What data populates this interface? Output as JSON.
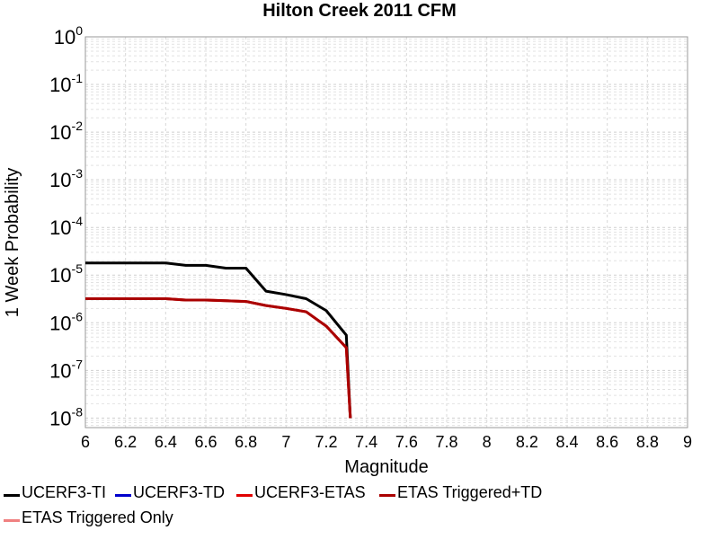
{
  "chart_data": {
    "type": "line",
    "title": "Hilton Creek 2011 CFM",
    "xlabel": "Magnitude",
    "ylabel": "1 Week Probability",
    "xlim": [
      6,
      9
    ],
    "ylim_log10": [
      -8.2,
      0
    ],
    "yscale": "log",
    "grid": true,
    "legend_position": "bottom",
    "x_ticks": [
      "6",
      "6.2",
      "6.4",
      "6.6",
      "6.8",
      "7",
      "7.2",
      "7.4",
      "7.6",
      "7.8",
      "8",
      "8.2",
      "8.4",
      "8.6",
      "8.8",
      "9"
    ],
    "y_tick_exponents": [
      "0",
      "-1",
      "-2",
      "-3",
      "-4",
      "-5",
      "-6",
      "-7",
      "-8"
    ],
    "series": [
      {
        "name": "UCERF3-TI",
        "color": "#000000",
        "x": [
          6.0,
          6.1,
          6.2,
          6.3,
          6.4,
          6.5,
          6.6,
          6.7,
          6.8,
          6.9,
          7.0,
          7.1,
          7.2,
          7.3,
          7.32
        ],
        "y": [
          1.8e-05,
          1.8e-05,
          1.8e-05,
          1.8e-05,
          1.8e-05,
          1.6e-05,
          1.6e-05,
          1.4e-05,
          1.4e-05,
          4.6e-06,
          3.9e-06,
          3.2e-06,
          1.8e-06,
          5.5e-07,
          1e-08
        ]
      },
      {
        "name": "UCERF3-TD",
        "color": "#0000cc",
        "x": [],
        "y": []
      },
      {
        "name": "UCERF3-ETAS",
        "color": "#e00000",
        "x": [
          6.0,
          6.1,
          6.2,
          6.3,
          6.4,
          6.5,
          6.6,
          6.7,
          6.8,
          6.9,
          7.0,
          7.1,
          7.2,
          7.3,
          7.32
        ],
        "y": [
          3.2e-06,
          3.2e-06,
          3.2e-06,
          3.2e-06,
          3.2e-06,
          3e-06,
          3e-06,
          2.9e-06,
          2.8e-06,
          2.3e-06,
          2e-06,
          1.7e-06,
          8.5e-07,
          3e-07,
          1e-08
        ]
      },
      {
        "name": "ETAS Triggered+TD",
        "color": "#aa0000",
        "x": [
          6.0,
          6.1,
          6.2,
          6.3,
          6.4,
          6.5,
          6.6,
          6.7,
          6.8,
          6.9,
          7.0,
          7.1,
          7.2,
          7.3,
          7.32
        ],
        "y": [
          3.2e-06,
          3.2e-06,
          3.2e-06,
          3.2e-06,
          3.2e-06,
          3e-06,
          3e-06,
          2.9e-06,
          2.8e-06,
          2.3e-06,
          2e-06,
          1.7e-06,
          8.5e-07,
          3e-07,
          1e-08
        ]
      },
      {
        "name": "ETAS Triggered Only",
        "color": "#f08080",
        "x": [],
        "y": []
      }
    ]
  }
}
